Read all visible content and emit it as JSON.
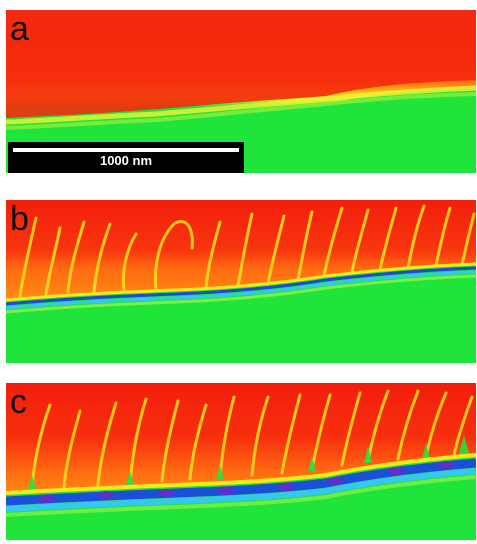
{
  "panels": [
    {
      "id": "a",
      "label": "a"
    },
    {
      "id": "b",
      "label": "b"
    },
    {
      "id": "c",
      "label": "c"
    }
  ],
  "scalebar": {
    "label": "1000 nm"
  },
  "colors": {
    "red": "#f4200c",
    "orange": "#ff7a10",
    "yellow": "#f6e81c",
    "green": "#1fe43a",
    "blue": "#1b4fd8",
    "cyan": "#33c7ee",
    "purple": "#6a2bc9"
  }
}
